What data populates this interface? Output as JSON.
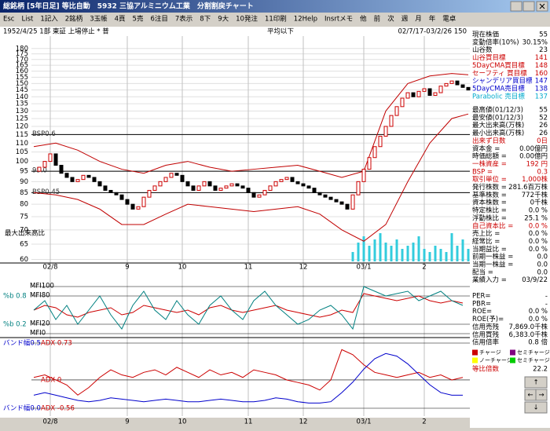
{
  "window": {
    "title": "総銘柄 [5年日足] 等比自動　5932 三協アルミニウム工業　分割割戻チャート"
  },
  "menu": [
    "Esc",
    "List",
    "1記入",
    "2銘柄",
    "3玉帳",
    "4頁",
    "5売",
    "6注目",
    "7表示",
    "8下",
    "9大",
    "10発注",
    "11印刷",
    "12Help",
    "Insrtメモ",
    "他",
    "前",
    "次",
    "週",
    "月",
    "年",
    "電卓"
  ],
  "header": {
    "left": "1952/4/25 1部 東証 上場停止 * 普",
    "middle": "平均以下",
    "right": "02/7/17-03/2/26 150"
  },
  "chart": {
    "type": "candlestick",
    "log_scale": true,
    "ylim": [
      59.4,
      192
    ],
    "yticks": [
      60,
      65,
      70,
      75,
      80,
      85,
      90,
      95,
      100,
      105,
      110,
      115,
      120,
      125,
      130,
      135,
      140,
      145,
      150,
      155,
      160,
      165,
      170,
      175,
      180
    ],
    "xlabels": [
      {
        "index": 3,
        "label": "02/8"
      },
      {
        "index": 17,
        "label": "9"
      },
      {
        "index": 27,
        "label": "10"
      },
      {
        "index": 39,
        "label": "11"
      },
      {
        "index": 49,
        "label": "12"
      },
      {
        "index": 60,
        "label": "03/1"
      },
      {
        "index": 71,
        "label": "2"
      }
    ],
    "close": [
      95,
      97,
      100,
      104,
      98,
      94,
      92,
      90,
      91,
      93,
      92,
      90,
      88,
      86,
      85,
      84,
      82,
      80,
      78,
      79,
      83,
      86,
      88,
      90,
      92,
      94,
      93,
      90,
      88,
      86,
      88,
      90,
      88,
      86,
      87,
      88,
      89,
      88,
      87,
      85,
      83,
      84,
      86,
      88,
      90,
      91,
      92,
      90,
      89,
      88,
      87,
      85,
      84,
      83,
      82,
      81,
      80,
      78,
      84,
      90,
      96,
      102,
      108,
      114,
      120,
      127,
      133,
      139,
      143,
      140,
      144,
      146,
      141,
      143,
      148,
      150,
      152,
      149,
      147,
      145
    ],
    "up_color": "#cc0000",
    "down_color": "#000000",
    "bands": [
      {
        "color": "#c00000",
        "x": [
          0,
          4,
          8,
          12,
          16,
          20,
          24,
          28,
          32,
          36,
          40,
          44,
          48,
          52,
          56,
          60,
          64,
          68,
          72,
          76,
          79
        ],
        "values": [
          108,
          110,
          106,
          100,
          96,
          94,
          98,
          100,
          97,
          95,
          96,
          97,
          98,
          95,
          92,
          95,
          130,
          150,
          156,
          158,
          157
        ]
      },
      {
        "color": "#c00000",
        "x": [
          0,
          4,
          8,
          12,
          16,
          20,
          24,
          28,
          32,
          36,
          40,
          44,
          48,
          52,
          56,
          60,
          64,
          68,
          72,
          76,
          79
        ],
        "values": [
          85,
          84,
          82,
          78,
          72,
          72,
          76,
          80,
          79,
          78,
          77,
          78,
          79,
          76,
          70,
          66,
          72,
          90,
          110,
          125,
          128
        ]
      }
    ],
    "reference_lines": [
      {
        "value": 115,
        "label": "BSP0.6"
      },
      {
        "value": 95,
        "label": "95.0"
      },
      {
        "value": 85,
        "label": "BSP0.45"
      }
    ],
    "volume": {
      "label": "最大出来高比",
      "color": "#33ccdd",
      "ylim": [
        0,
        1
      ],
      "x": [
        58,
        59,
        60,
        61,
        62,
        63,
        64,
        65,
        66,
        67,
        68,
        69,
        70,
        71,
        72,
        73,
        74,
        75,
        76,
        77,
        78,
        79
      ],
      "values": [
        0.3,
        0.6,
        0.8,
        0.5,
        0.7,
        0.9,
        0.6,
        0.5,
        0.7,
        0.4,
        0.5,
        0.6,
        0.8,
        0.4,
        0.3,
        0.5,
        0.4,
        0.3,
        0.9,
        0.5,
        0.7,
        0.4
      ]
    }
  },
  "mfi_panel": {
    "ylim": [
      0,
      100
    ],
    "pct_b_ylim": [
      0,
      1
    ],
    "ticks": [
      {
        "value": 100,
        "label": "MFI100"
      },
      {
        "value": 80,
        "label": "MFI80"
      },
      {
        "value": 20,
        "label": "MFI20"
      },
      {
        "value": 0,
        "label": "MFI0"
      }
    ],
    "pct_b_ticks": [
      {
        "value": 0.8,
        "label": "%b 0.8"
      },
      {
        "value": 0.2,
        "label": "%b 0.2"
      }
    ],
    "pct_b": {
      "color": "#008080",
      "values": [
        0.5,
        0.7,
        0.3,
        0.6,
        0.2,
        0.5,
        0.8,
        0.4,
        0.1,
        0.6,
        0.9,
        0.5,
        0.3,
        0.7,
        0.4,
        0.2,
        0.6,
        0.8,
        0.5,
        0.3,
        0.7,
        0.9,
        0.6,
        0.4,
        0.2,
        0.3,
        0.5,
        0.6,
        0.4,
        0.1,
        1.0,
        0.9,
        0.8,
        0.85,
        0.9,
        0.7,
        0.8,
        0.9,
        0.7,
        0.6
      ]
    },
    "mfi": {
      "color": "#cc0000",
      "values": [
        50,
        60,
        55,
        40,
        35,
        45,
        50,
        55,
        40,
        45,
        60,
        55,
        50,
        45,
        50,
        40,
        55,
        60,
        50,
        45,
        50,
        55,
        60,
        50,
        45,
        40,
        35,
        40,
        50,
        45,
        85,
        80,
        75,
        70,
        75,
        80,
        70,
        65,
        70,
        65
      ]
    }
  },
  "band_panel": {
    "ylim": [
      0,
      0.5
    ],
    "adx_ylim": [
      -0.56,
      0.73
    ],
    "ticks": [
      {
        "value": 0.5,
        "label": "バンド幅0.5"
      },
      {
        "value": 0,
        "label": "バンド幅0.0"
      }
    ],
    "adx_ticks": [
      {
        "value": 0.73,
        "label": "ADX 0.73"
      },
      {
        "value": 0,
        "label": "ADX 0"
      },
      {
        "value": -0.56,
        "label": "ADX -0.56"
      }
    ],
    "width": {
      "color": "#0000cc",
      "values": [
        0.1,
        0.12,
        0.1,
        0.08,
        0.06,
        0.05,
        0.06,
        0.08,
        0.07,
        0.06,
        0.05,
        0.06,
        0.07,
        0.06,
        0.05,
        0.05,
        0.06,
        0.07,
        0.06,
        0.05,
        0.05,
        0.06,
        0.08,
        0.07,
        0.05,
        0.04,
        0.04,
        0.05,
        0.12,
        0.2,
        0.3,
        0.38,
        0.42,
        0.4,
        0.34,
        0.26,
        0.18,
        0.12,
        0.1,
        0.1
      ]
    },
    "adx": {
      "color": "#cc0000",
      "values": [
        0.05,
        0.1,
        0.0,
        -0.1,
        -0.3,
        -0.15,
        0.05,
        0.2,
        0.1,
        0.05,
        0.15,
        0.2,
        0.1,
        0.25,
        0.15,
        0.05,
        0.2,
        0.1,
        0.15,
        0.05,
        0.2,
        0.15,
        0.1,
        0.0,
        -0.05,
        -0.1,
        -0.2,
        0.0,
        0.6,
        0.5,
        0.3,
        0.15,
        0.1,
        0.05,
        0.1,
        0.15,
        0.05,
        0.1,
        0.0,
        0.05
      ]
    }
  },
  "stats": [
    [
      {
        "label": "現在株価",
        "value": "55"
      },
      {
        "label": "変動倍率(10%)",
        "value": "30.15%"
      },
      {
        "label": "山谷数",
        "value": "23"
      },
      {
        "label": "山谷買目標",
        "value": "141",
        "color": "#cc0000"
      },
      {
        "label": "5DayCMA買目標",
        "value": "148",
        "color": "#cc0000"
      },
      {
        "label": "セーフティ 買目標",
        "value": "160",
        "color": "#cc0000"
      },
      {
        "label": "シャンデリア買目標",
        "value": "147",
        "color": "#0000cc"
      },
      {
        "label": "5DayCMA売目標",
        "value": "138",
        "color": "#0000cc"
      },
      {
        "label": "Parabolic 売目標",
        "value": "137",
        "color": "#00aacc"
      }
    ],
    [
      {
        "label": "最高値(01/12/3)",
        "value": "55"
      },
      {
        "label": "最安値(01/12/3)",
        "value": "52"
      },
      {
        "label": "最大出来高(万株)",
        "value": "26"
      },
      {
        "label": "最小出来高(万株)",
        "value": "26"
      },
      {
        "label": "出来ず日数",
        "value": "0日",
        "color": "#cc0000"
      },
      {
        "label": "資本金 =",
        "value": "0.00億円"
      },
      {
        "label": "時価総額 =",
        "value": "0.00億円"
      },
      {
        "label": "一株資産 =",
        "value": "192 円",
        "color": "#cc0000"
      },
      {
        "label": "BSP =",
        "value": "0.3",
        "color": "#cc0000"
      },
      {
        "label": "取引単位 =",
        "value": "1,000株",
        "color": "#cc0000"
      },
      {
        "label": "発行株数 =",
        "value": "281.6百万株"
      },
      {
        "label": "基準株数 =",
        "value": "772千株"
      },
      {
        "label": "資本株数 =",
        "value": "0千株"
      },
      {
        "label": "特定株比 =",
        "value": "0.0 %"
      },
      {
        "label": "浮動株比 =",
        "value": "25.1 %"
      },
      {
        "label": "自己資本比 =",
        "value": "0.0 %",
        "color": "#cc0000"
      },
      {
        "label": "売上比 =",
        "value": "0.0 %"
      },
      {
        "label": "経常比 =",
        "value": "0.0 %"
      },
      {
        "label": "当期益比 =",
        "value": "0.0 %"
      },
      {
        "label": "前期一株益 =",
        "value": "0.0"
      },
      {
        "label": "当期一株益 =",
        "value": "0.0"
      },
      {
        "label": "配当 =",
        "value": "0.0"
      },
      {
        "label": "業績入力 =",
        "value": "03/9/22"
      }
    ],
    [
      {
        "label": "PER=",
        "value": "-"
      },
      {
        "label": "PBR=",
        "value": "-"
      },
      {
        "label": "ROE=",
        "value": "0.0 %"
      },
      {
        "label": "ROE(予)=",
        "value": "0.0 %"
      },
      {
        "label": "信用売残",
        "value": "7,869.0千株"
      },
      {
        "label": "信用買残",
        "value": "6,383.0千株"
      },
      {
        "label": "信用倍率",
        "value": "0.8 倍"
      }
    ]
  ],
  "legend": [
    {
      "label": "チャージ",
      "color": "#cc0000"
    },
    {
      "label": "セミチャージ",
      "color": "#800080"
    },
    {
      "label": "ノーチャージ",
      "color": "#ffff00"
    },
    {
      "label": "セミチャージ",
      "color": "#00cc00"
    }
  ],
  "ratio": {
    "label": "等比倍数",
    "value": "22.2"
  }
}
